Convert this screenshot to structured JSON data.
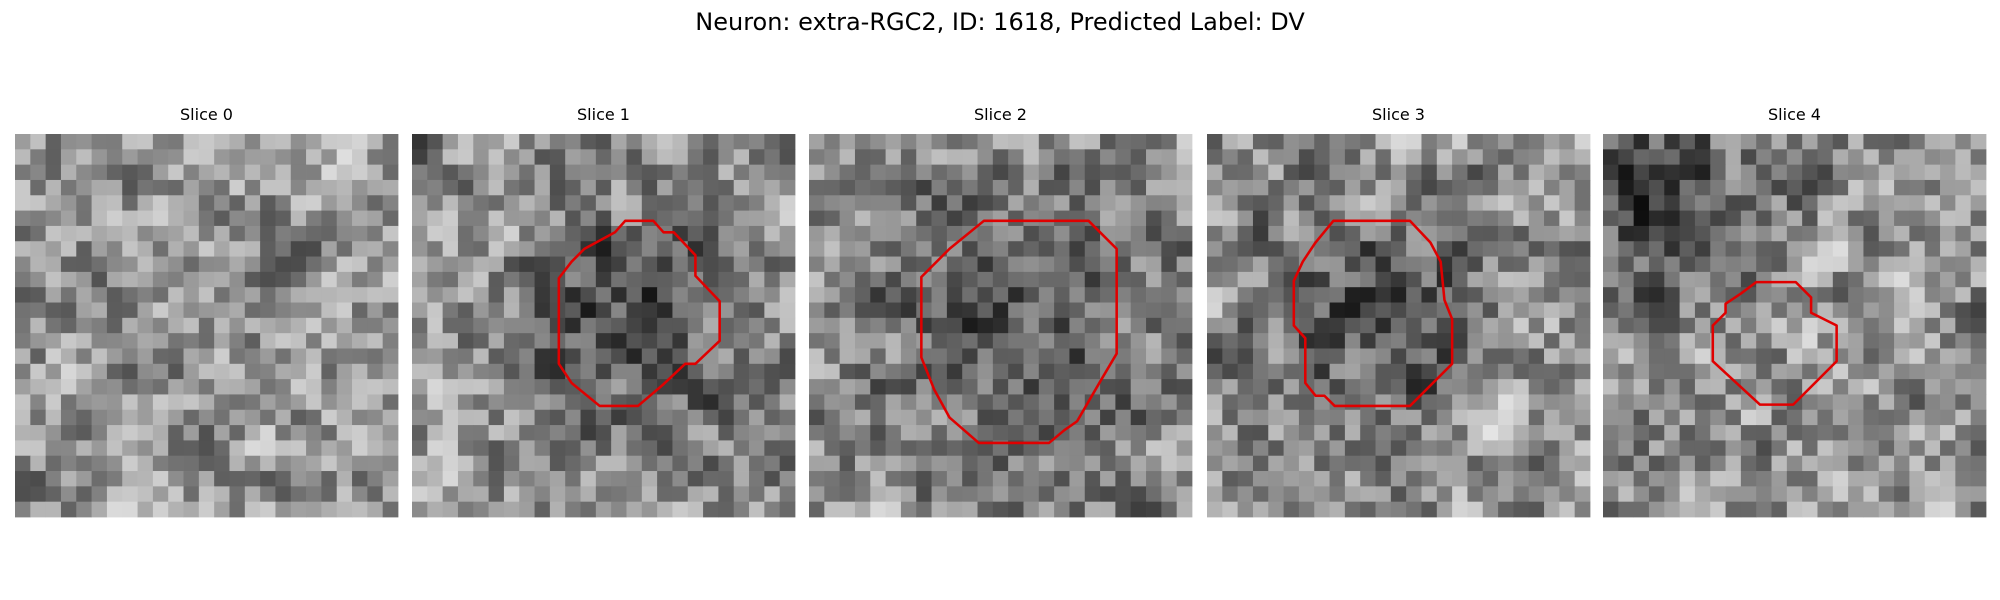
{
  "figure": {
    "title": "Neuron: extra-RGC2, ID: 1618, Predicted Label: DV",
    "panels": [
      {
        "title": "Slice 0"
      },
      {
        "title": "Slice 1"
      },
      {
        "title": "Slice 2"
      },
      {
        "title": "Slice 3"
      },
      {
        "title": "Slice 4"
      }
    ]
  }
}
